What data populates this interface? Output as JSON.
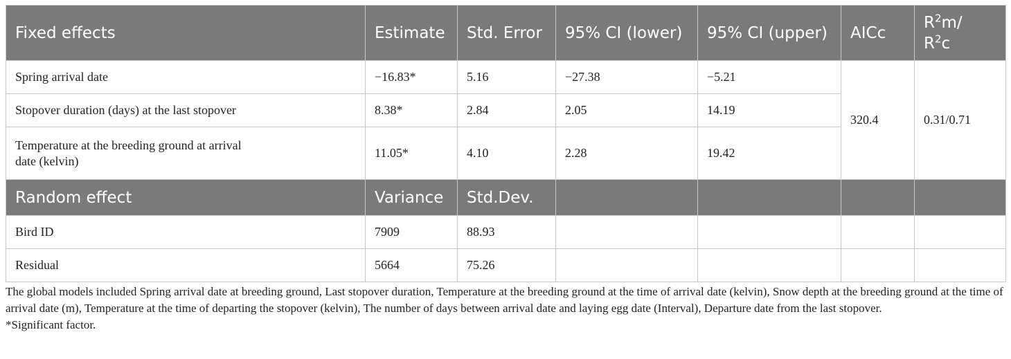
{
  "table": {
    "fixed_header": {
      "col1": "Fixed effects",
      "col2": "Estimate",
      "col3": "Std. Error",
      "col4": "95% CI (lower)",
      "col5": "95% CI (upper)",
      "col6": "AICc",
      "col7_line1_base": "R",
      "col7_line1_sup": "2",
      "col7_line1_tail": "m/",
      "col7_line2_base": "R",
      "col7_line2_sup": "2",
      "col7_line2_tail": "c"
    },
    "fixed_rows": [
      {
        "name": "Spring arrival date",
        "estimate": "−16.83*",
        "se": "5.16",
        "lower": "−27.38",
        "upper": "−5.21"
      },
      {
        "name": "Stopover duration (days) at the last stopover",
        "estimate": "8.38*",
        "se": "2.84",
        "lower": "2.05",
        "upper": "14.19"
      },
      {
        "name_line1": "Temperature at the breeding ground at arrival",
        "name_line2": "date (kelvin)",
        "estimate": "11.05*",
        "se": "4.10",
        "lower": "2.28",
        "upper": "19.42"
      }
    ],
    "aicc": "320.4",
    "r2": "0.31/0.71",
    "random_header": {
      "col1": "Random effect",
      "col2": "Variance",
      "col3": "Std.Dev."
    },
    "random_rows": [
      {
        "name": "Bird ID",
        "variance": "7909",
        "sd": "88.93"
      },
      {
        "name": "Residual",
        "variance": "5664",
        "sd": "75.26"
      }
    ]
  },
  "notes": {
    "global_models": "The global models included Spring arrival date at breeding ground, Last stopover duration, Temperature at the breeding ground at the time of arrival date (kelvin), Snow depth at the breeding ground at the time of arrival date (m), Temperature at the time of departing the stopover (kelvin), The number of days between arrival date and laying egg date (Interval), Departure date from the last stopover.",
    "significance": "*Significant factor."
  }
}
